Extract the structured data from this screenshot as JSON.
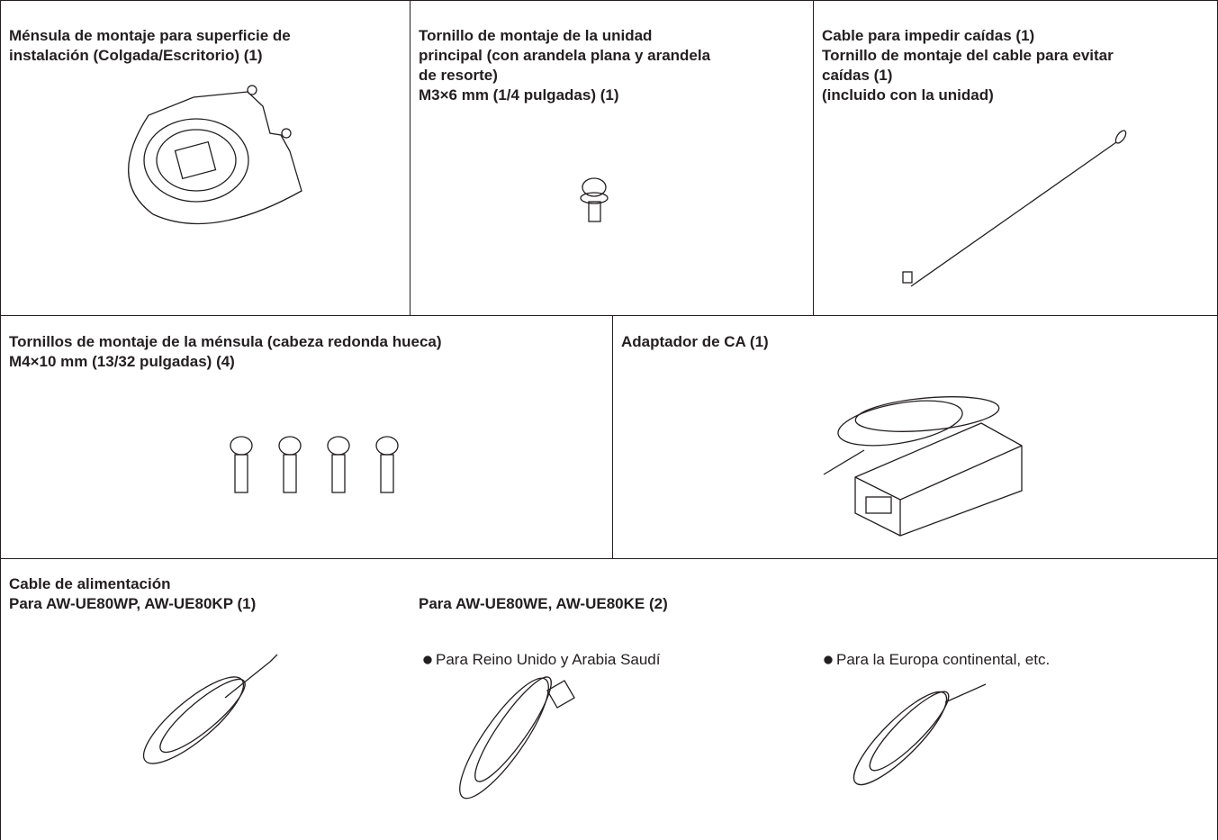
{
  "cells": [
    {
      "lines": [
        "Ménsula de montaje para superficie de",
        "instalación (Colgada/Escritorio) (1)"
      ]
    },
    {
      "lines": [
        "Tornillo de montaje de la unidad",
        "principal (con arandela plana y arandela",
        "de resorte)",
        "M3×6 mm (1/4 pulgadas) (1)"
      ]
    },
    {
      "lines": [
        "Cable para impedir caídas (1)",
        "Tornillo de montaje del cable para evitar",
        "caídas (1)",
        "(incluido con la unidad)"
      ]
    },
    {
      "lines": [
        "Tornillos de montaje de la ménsula (cabeza redonda hueca)",
        "M4×10 mm (13/32 pulgadas) (4)"
      ]
    },
    {
      "lines": [
        "Adaptador de CA (1)"
      ]
    },
    {
      "lines": [
        "Cable de alimentación",
        "Para AW-UE80WP, AW-UE80KP (1)"
      ],
      "variant": {
        "heading": "Para AW-UE80WE, AW-UE80KE (2)",
        "options": [
          "Para Reino Unido y Arabia Saudí",
          "Para la Europa continental, etc."
        ]
      }
    }
  ]
}
